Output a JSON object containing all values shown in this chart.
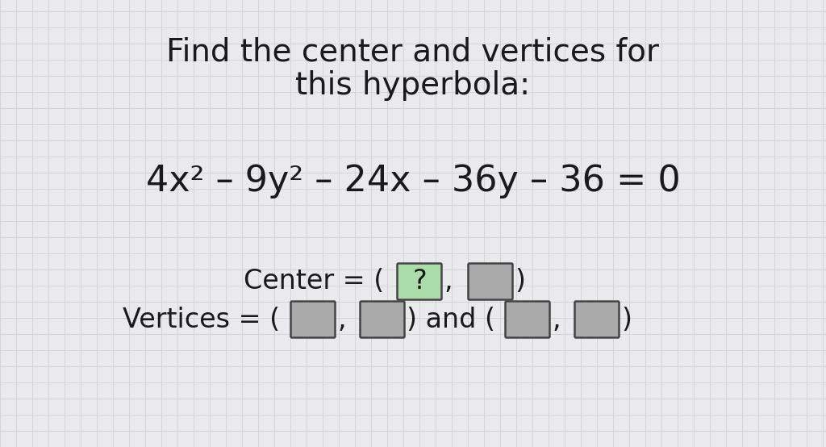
{
  "background_color": "#eaeaee",
  "grid_color": "#d0d0da",
  "title_line1": "Find the center and vertices for",
  "title_line2": "this hyperbola:",
  "equation": "4x² – 9y² – 24x – 36y – 36 = 0",
  "center_box1_color": "#aaddaa",
  "center_box2_color": "#aaaaaa",
  "box_gray_color": "#aaaaaa",
  "text_color": "#1a1a1a",
  "title_fontsize": 28,
  "equation_fontsize": 32,
  "answer_fontsize": 24
}
